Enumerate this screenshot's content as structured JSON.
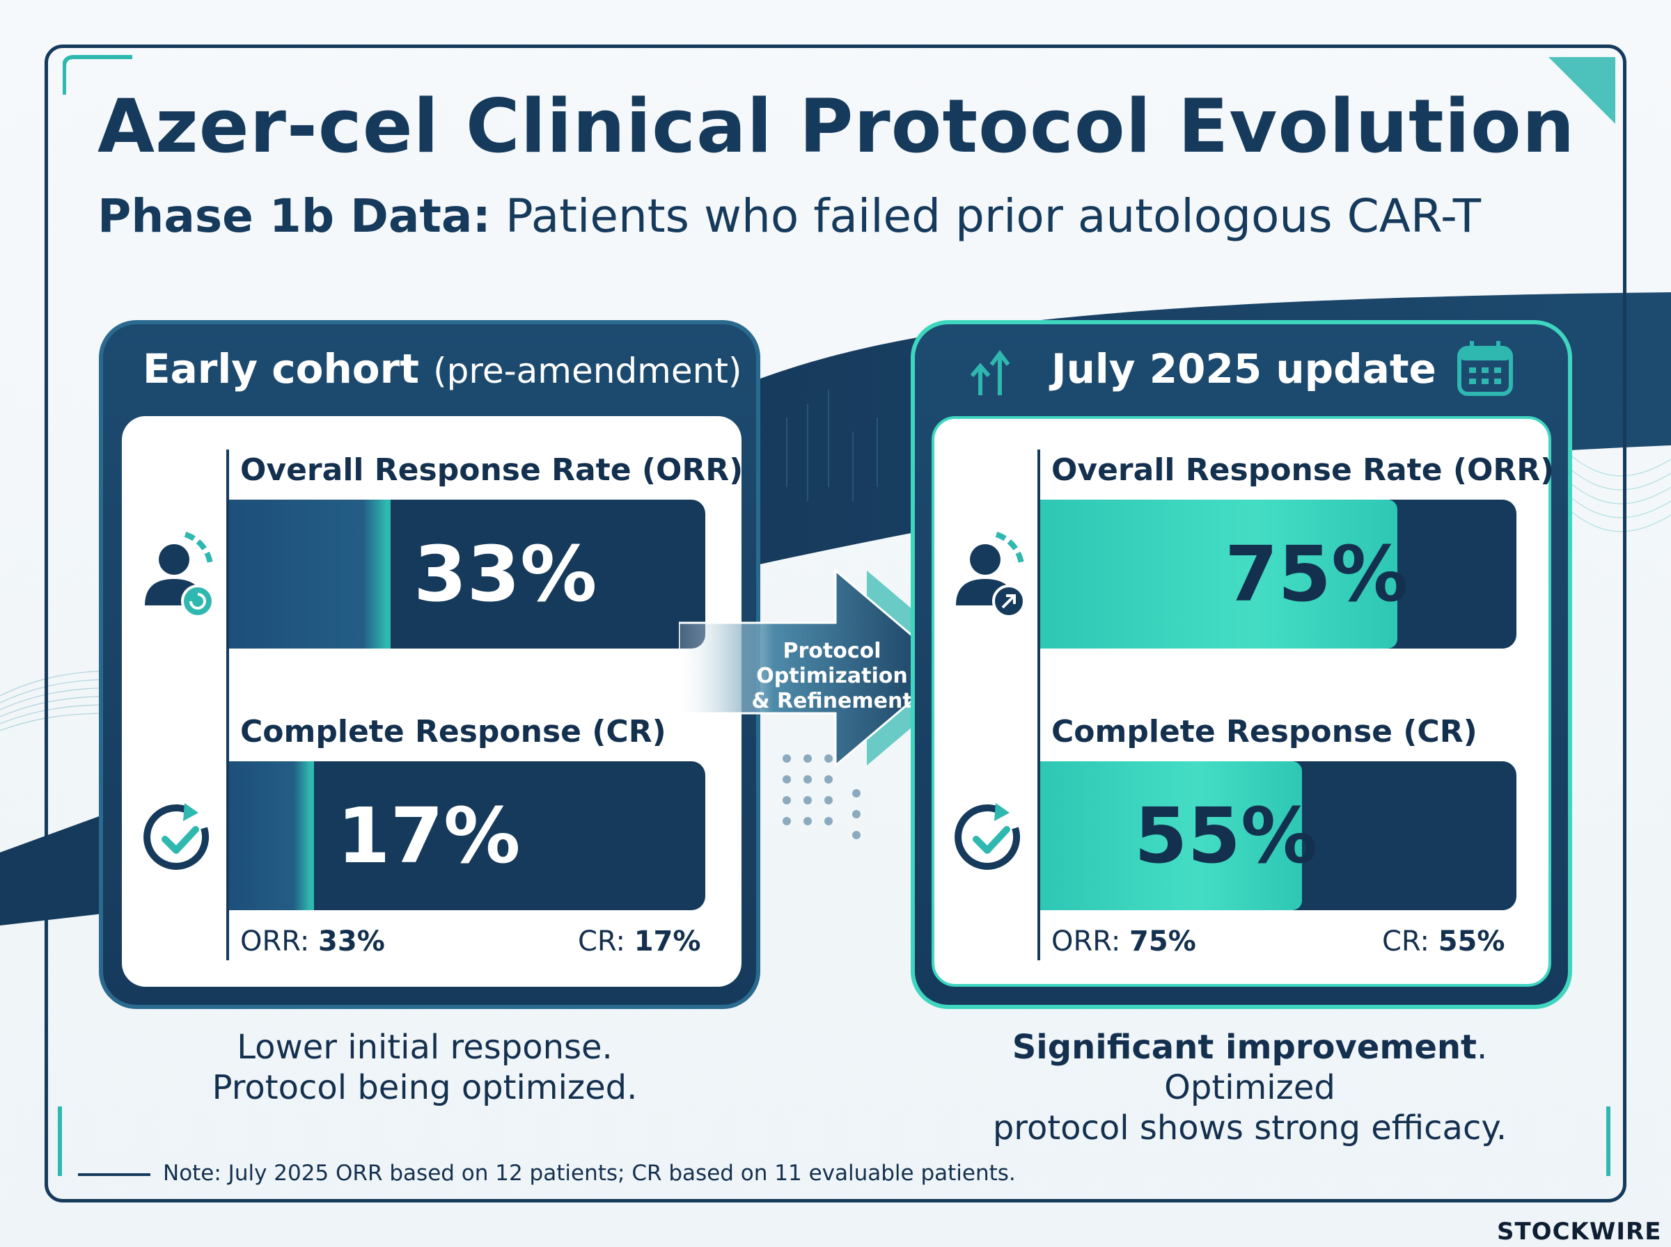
{
  "title": "Azer-cel Clinical Protocol Evolution",
  "subtitle": {
    "bold": "Phase 1b Data:",
    "regular": "Patients who failed prior autologous CAR-T"
  },
  "left_panel": {
    "title": "Early cohort",
    "title_suffix": "(pre-amendment)",
    "orr_label": "Overall Response Rate (ORR)",
    "cr_label": "Complete Response (CR)",
    "orr_value_text": "33%",
    "cr_value_text": "17%",
    "footer_orr_label": "ORR:",
    "footer_orr_value": "33%",
    "footer_cr_label": "CR:",
    "footer_cr_value": "17%",
    "description_line1": "Lower initial response.",
    "description_line2": "Protocol being optimized."
  },
  "right_panel": {
    "title": "July 2025 update",
    "orr_label": "Overall Response Rate (ORR)",
    "cr_label": "Complete Response (CR)",
    "orr_value_text": "75%",
    "cr_value_text": "55%",
    "footer_orr_label": "ORR:",
    "footer_orr_value": "75%",
    "footer_cr_label": "CR:",
    "footer_cr_value": "55%",
    "description_bold": "Significant improvement",
    "description_rest": ". Optimized",
    "description_line2": "protocol shows strong efficacy."
  },
  "arrow": {
    "line1": "Protocol",
    "line2": "Optimization",
    "line3": "& Refinement"
  },
  "note": "Note: July 2025 ORR based on 12 patients; CR based on 11 evaluable patients.",
  "brand": "STOCKWIRE X",
  "icons": {
    "orr_left": "user-progress-icon",
    "cr_left": "check-cycle-icon",
    "orr_right": "user-growth-icon",
    "cr_right": "check-cycle-icon",
    "title_right_arrows": "up-arrows-icon",
    "title_right_calendar": "calendar-icon"
  },
  "colors": {
    "navy": "#163a5c",
    "dark_navy": "#0f2a4a",
    "teal": "#3ed6bf",
    "teal_dark": "#1f9e95",
    "background": "#f4f8fa"
  },
  "chart_data": [
    {
      "type": "bar",
      "title": "Early cohort (pre-amendment)",
      "categories": [
        "Overall Response Rate (ORR)",
        "Complete Response (CR)"
      ],
      "values": [
        33,
        17
      ],
      "unit": "%",
      "ylim": [
        0,
        100
      ]
    },
    {
      "type": "bar",
      "title": "July 2025 update",
      "categories": [
        "Overall Response Rate (ORR)",
        "Complete Response (CR)"
      ],
      "values": [
        75,
        55
      ],
      "unit": "%",
      "ylim": [
        0,
        100
      ]
    }
  ]
}
